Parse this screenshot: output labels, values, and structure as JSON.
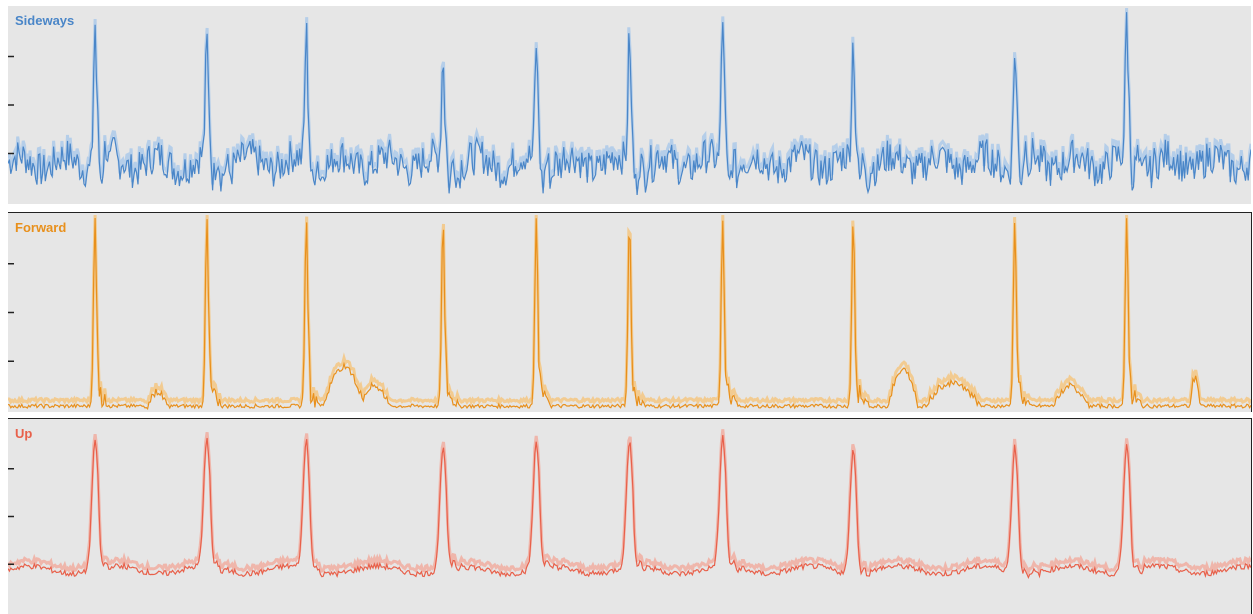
{
  "chart_data": [
    {
      "type": "line",
      "label": "Sideways",
      "color": "#4a86c8",
      "band_color": "#a9c8ea",
      "style": "noisy",
      "ylim": [
        0,
        100
      ],
      "baseline": 20,
      "spike_x": [
        7,
        16,
        24,
        35,
        42.5,
        50,
        57.5,
        68,
        81,
        90
      ],
      "spike_y": [
        94,
        80,
        88,
        75,
        82,
        86,
        98,
        80,
        82,
        93
      ]
    },
    {
      "type": "line",
      "label": "Forward",
      "color": "#e8901c",
      "band_color": "#f5c47c",
      "style": "flat",
      "ylim": [
        0,
        100
      ],
      "baseline": 1,
      "spike_x": [
        7,
        16,
        24,
        35,
        42.5,
        50,
        57.5,
        68,
        81,
        90
      ],
      "spike_y": [
        97,
        97,
        97,
        97,
        97,
        97,
        97,
        97,
        97,
        97
      ],
      "bumps": [
        {
          "x": 27,
          "w": 1.6,
          "h": 20
        },
        {
          "x": 29.5,
          "w": 1.2,
          "h": 10
        },
        {
          "x": 72,
          "w": 1.2,
          "h": 18
        },
        {
          "x": 76,
          "w": 2.2,
          "h": 12
        },
        {
          "x": 85.5,
          "w": 1.4,
          "h": 10
        },
        {
          "x": 12,
          "w": 0.8,
          "h": 7
        },
        {
          "x": 95.5,
          "w": 0.4,
          "h": 15
        }
      ]
    },
    {
      "type": "line",
      "label": "Up",
      "color": "#e8604a",
      "band_color": "#f1aa9c",
      "style": "smooth",
      "ylim": [
        0,
        100
      ],
      "baseline": 22,
      "spike_x": [
        7,
        16,
        24,
        35,
        42.5,
        50,
        57.5,
        68,
        81,
        90
      ],
      "spike_y": [
        90,
        90,
        90,
        87,
        88,
        88,
        90,
        88,
        88,
        90
      ]
    }
  ]
}
